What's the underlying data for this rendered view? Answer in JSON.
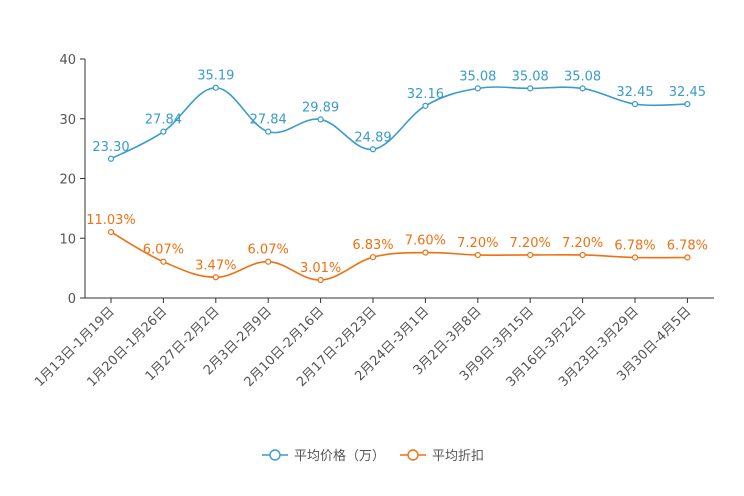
{
  "chart_data": {
    "type": "line",
    "categories": [
      "1月13日-1月19日",
      "1月20日-1月26日",
      "1月27日-2月2日",
      "2月3日-2月9日",
      "2月10日-2月16日",
      "2月17日-2月23日",
      "2月24日-3月1日",
      "3月2日-3月8日",
      "3月9日-3月15日",
      "3月16日-3月22日",
      "3月23日-3月29日",
      "3月30日-4月5日"
    ],
    "ylim": [
      0,
      40
    ],
    "yticks": [
      0,
      10,
      20,
      30,
      40
    ],
    "series": [
      {
        "name": "平均价格（万）",
        "color": "#3a9bcc",
        "values": [
          23.3,
          27.84,
          35.19,
          27.84,
          29.89,
          24.89,
          32.16,
          35.08,
          35.08,
          35.08,
          32.45,
          32.45
        ],
        "labels": [
          "23.30",
          "27.84",
          "35.19",
          "27.84",
          "29.89",
          "24.89",
          "32.16",
          "35.08",
          "35.08",
          "35.08",
          "32.45",
          "32.45"
        ]
      },
      {
        "name": "平均折扣",
        "color": "#f07010",
        "values": [
          11.03,
          6.07,
          3.47,
          6.07,
          3.01,
          6.83,
          7.6,
          7.2,
          7.2,
          7.2,
          6.78,
          6.78
        ],
        "labels": [
          "11.03%",
          "6.07%",
          "3.47%",
          "6.07%",
          "3.01%",
          "6.83%",
          "7.60%",
          "7.20%",
          "7.20%",
          "7.20%",
          "6.78%",
          "6.78%"
        ]
      }
    ],
    "legend_position": "bottom-center"
  }
}
